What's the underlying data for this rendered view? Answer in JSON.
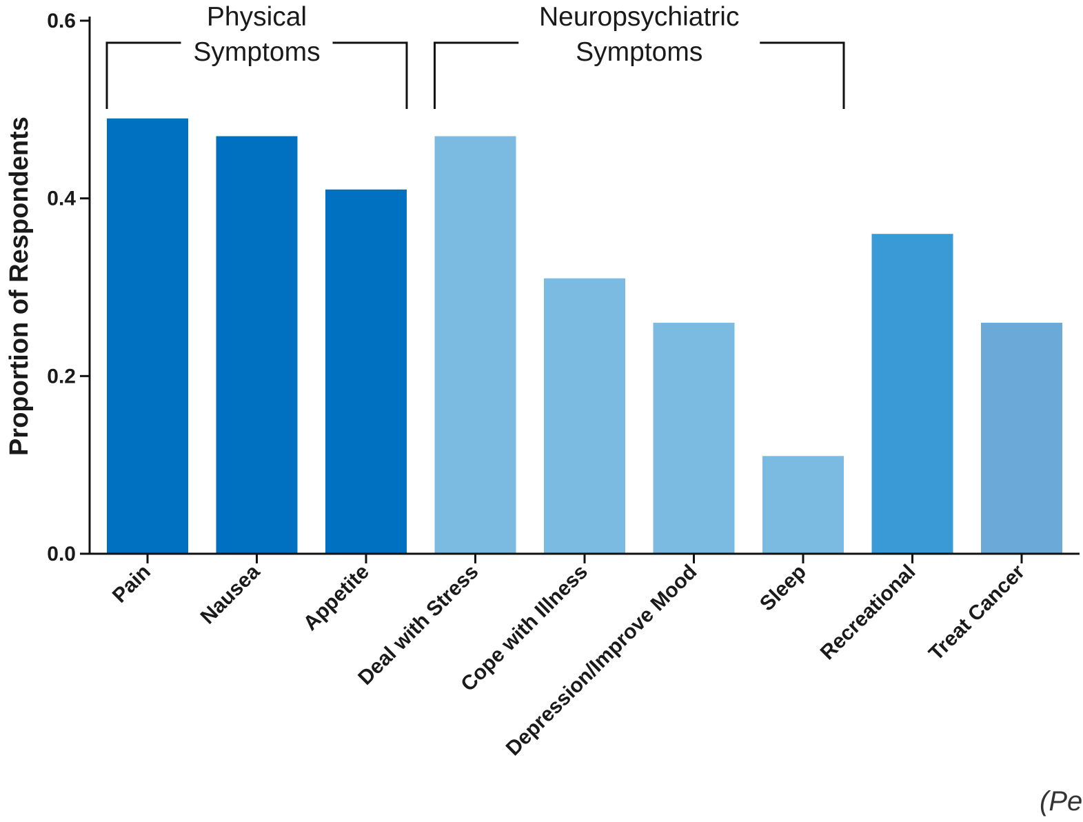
{
  "chart_data": {
    "type": "bar",
    "categories": [
      "Pain",
      "Nausea",
      "Appetite",
      "Deal with Stress",
      "Cope with Illness",
      "Depression/Improve Mood",
      "Sleep",
      "Recreational",
      "Treat Cancer"
    ],
    "values": [
      0.49,
      0.47,
      0.41,
      0.47,
      0.31,
      0.26,
      0.11,
      0.36,
      0.26
    ],
    "bar_colors": [
      "#0070c0",
      "#0070c0",
      "#0070c0",
      "#7bbbe2",
      "#7bbbe2",
      "#7bbbe2",
      "#7bbbe2",
      "#3a9ad6",
      "#6aa9d8"
    ],
    "ylabel": "Proportion of Respondents",
    "xlabel": "",
    "ylim": [
      0,
      0.6
    ],
    "yticks": [
      "0.0",
      "0.2",
      "0.4",
      "0.6"
    ],
    "grid": false,
    "groups": [
      {
        "label_line1": "Physical",
        "label_line2": "Symptoms",
        "from": 0,
        "to": 2
      },
      {
        "label_line1": "Neuropsychiatric",
        "label_line2": "Symptoms",
        "from": 3,
        "to": 6
      }
    ],
    "source_note": "(Pe"
  }
}
